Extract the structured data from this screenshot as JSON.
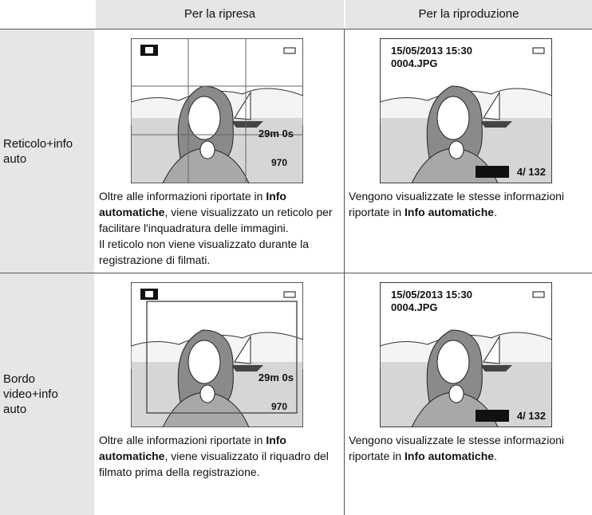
{
  "header": {
    "col1": "Per la ripresa",
    "col2": "Per la riproduzione"
  },
  "rows": [
    {
      "label": "Reticolo+info auto",
      "shooting": {
        "screen": {
          "time": "29m 0s",
          "count": "970"
        },
        "paragraphs": [
          {
            "before": "Oltre alle informazioni riportate in ",
            "bold": "Info automatiche",
            "after": ", viene visualizzato un reticolo per facilitare l'inquadratura delle immagini."
          },
          {
            "before": "Il reticolo non viene visualizzato durante la registrazione di filmati.",
            "bold": "",
            "after": ""
          }
        ]
      },
      "playback": {
        "screen": {
          "date": "15/05/2013  15:30",
          "file": "0004.JPG",
          "frame": "4/ 132"
        },
        "paragraphs": [
          {
            "before": "Vengono visualizzate le stesse informazioni riportate in ",
            "bold": "Info automatiche",
            "after": "."
          }
        ]
      }
    },
    {
      "label": "Bordo video+info auto",
      "shooting": {
        "screen": {
          "time": "29m 0s",
          "count": "970"
        },
        "paragraphs": [
          {
            "before": "Oltre alle informazioni riportate in ",
            "bold": "Info automatiche",
            "after": ", viene visualizzato il riquadro del filmato prima della registrazione."
          }
        ]
      },
      "playback": {
        "screen": {
          "date": "15/05/2013  15:30",
          "file": "0004.JPG",
          "frame": "4/ 132"
        },
        "paragraphs": [
          {
            "before": "Vengono visualizzate le stesse informazioni riportate in ",
            "bold": "Info automatiche",
            "after": "."
          }
        ]
      }
    }
  ]
}
